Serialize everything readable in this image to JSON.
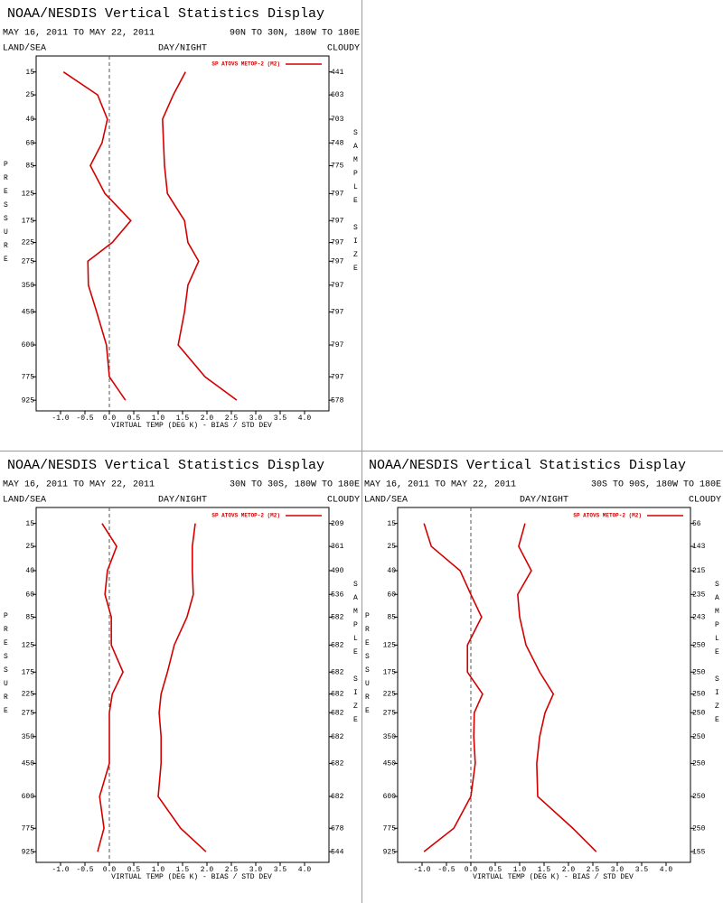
{
  "chart_data": [
    {
      "type": "line",
      "title": "NOAA/NESDIS Vertical Statistics Display",
      "date_range": "MAY 16, 2011 TO MAY 22, 2011",
      "region": "90N TO 30N, 180W TO 180E",
      "left_label": "LAND/SEA",
      "center_label": "DAY/NIGHT",
      "right_label": "CLOUDY",
      "ylabel": "PRESSURE",
      "y2label": "SAMPLE SIZE",
      "xlabel": "VIRTUAL TEMP (DEG K) - BIAS / STD DEV",
      "xlim": [
        -1.5,
        4.5
      ],
      "xticks": [
        {
          "value": -1,
          "label": "-1.0"
        },
        -0.5,
        {
          "value": 0,
          "label": "0.0"
        },
        0.5,
        {
          "value": 1,
          "label": "1.0"
        },
        1.5,
        {
          "value": 2,
          "label": "2.0"
        },
        2.5,
        {
          "value": 3,
          "label": "3.0"
        },
        3.5,
        {
          "value": 4,
          "label": "4.0"
        }
      ],
      "ylim": [
        10,
        1000
      ],
      "y_inverted": true,
      "yticks": [
        15,
        25,
        40,
        60,
        85,
        125,
        175,
        225,
        275,
        350,
        450,
        600,
        775,
        925
      ],
      "sample_size": [
        441,
        603,
        703,
        748,
        775,
        797,
        797,
        797,
        797,
        797,
        797,
        797,
        797,
        578
      ],
      "series": [
        {
          "name": "SP ATOVS METOP-2 (M2)",
          "color": "#d40000",
          "bias": [
            -0.94,
            -0.24,
            -0.04,
            -0.15,
            -0.39,
            -0.09,
            0.44,
            0.06,
            -0.44,
            -0.43,
            -0.26,
            -0.06,
            0.0,
            0.33
          ],
          "std_dev": [
            1.56,
            1.31,
            1.09,
            1.11,
            1.13,
            1.19,
            1.54,
            1.61,
            1.83,
            1.61,
            1.54,
            1.41,
            1.96,
            2.61
          ]
        }
      ]
    },
    {
      "type": "line",
      "title": "NOAA/NESDIS Vertical Statistics Display",
      "date_range": "MAY 16, 2011 TO MAY 22, 2011",
      "region": "30N TO 30S, 180W TO 180E",
      "left_label": "LAND/SEA",
      "center_label": "DAY/NIGHT",
      "right_label": "CLOUDY",
      "ylabel": "PRESSURE",
      "y2label": "SAMPLE SIZE",
      "xlabel": "VIRTUAL TEMP (DEG K) - BIAS / STD DEV",
      "xlim": [
        -1.5,
        4.5
      ],
      "xticks": [
        {
          "value": -1,
          "label": "-1.0"
        },
        -0.5,
        {
          "value": 0,
          "label": "0.0"
        },
        0.5,
        {
          "value": 1,
          "label": "1.0"
        },
        1.5,
        {
          "value": 2,
          "label": "2.0"
        },
        2.5,
        {
          "value": 3,
          "label": "3.0"
        },
        3.5,
        {
          "value": 4,
          "label": "4.0"
        }
      ],
      "ylim": [
        10,
        1000
      ],
      "y_inverted": true,
      "yticks": [
        15,
        25,
        40,
        60,
        85,
        125,
        175,
        225,
        275,
        350,
        450,
        600,
        775,
        925
      ],
      "sample_size": [
        209,
        361,
        490,
        536,
        582,
        682,
        682,
        682,
        682,
        682,
        682,
        682,
        678,
        544
      ],
      "series": [
        {
          "name": "SP ATOVS METOP-2 (M2)",
          "color": "#d40000",
          "bias": [
            -0.15,
            0.15,
            -0.04,
            -0.09,
            0.04,
            0.04,
            0.28,
            0.06,
            0.0,
            0.0,
            0.0,
            -0.2,
            -0.11,
            -0.24
          ],
          "std_dev": [
            1.76,
            1.7,
            1.7,
            1.72,
            1.59,
            1.33,
            1.19,
            1.06,
            1.02,
            1.06,
            1.06,
            1.0,
            1.46,
            1.98
          ]
        }
      ]
    },
    {
      "type": "line",
      "title": "NOAA/NESDIS Vertical Statistics Display",
      "date_range": "MAY 16, 2011 TO MAY 22, 2011",
      "region": "30S TO 90S, 180W TO 180E",
      "left_label": "LAND/SEA",
      "center_label": "DAY/NIGHT",
      "right_label": "CLOUDY",
      "ylabel": "PRESSURE",
      "y2label": "SAMPLE SIZE",
      "xlabel": "VIRTUAL TEMP (DEG K) - BIAS / STD DEV",
      "xlim": [
        -1.5,
        4.5
      ],
      "xticks": [
        {
          "value": -1,
          "label": "-1.0"
        },
        -0.5,
        {
          "value": 0,
          "label": "0.0"
        },
        0.5,
        {
          "value": 1,
          "label": "1.0"
        },
        1.5,
        {
          "value": 2,
          "label": "2.0"
        },
        2.5,
        {
          "value": 3,
          "label": "3.0"
        },
        3.5,
        {
          "value": 4,
          "label": "4.0"
        }
      ],
      "ylim": [
        10,
        1000
      ],
      "y_inverted": true,
      "yticks": [
        15,
        25,
        40,
        60,
        85,
        125,
        175,
        225,
        275,
        350,
        450,
        600,
        775,
        925
      ],
      "sample_size": [
        56,
        143,
        215,
        235,
        243,
        250,
        250,
        250,
        250,
        250,
        250,
        250,
        250,
        155
      ],
      "series": [
        {
          "name": "SP ATOVS METOP-2 (M2)",
          "color": "#d40000",
          "bias": [
            -0.96,
            -0.81,
            -0.22,
            0.0,
            0.22,
            -0.07,
            -0.07,
            0.24,
            0.07,
            0.06,
            0.09,
            0.0,
            -0.35,
            -0.96
          ],
          "std_dev": [
            1.11,
            0.98,
            1.24,
            0.96,
            1.0,
            1.13,
            1.41,
            1.69,
            1.52,
            1.41,
            1.35,
            1.37,
            2.09,
            2.57
          ]
        }
      ]
    }
  ]
}
